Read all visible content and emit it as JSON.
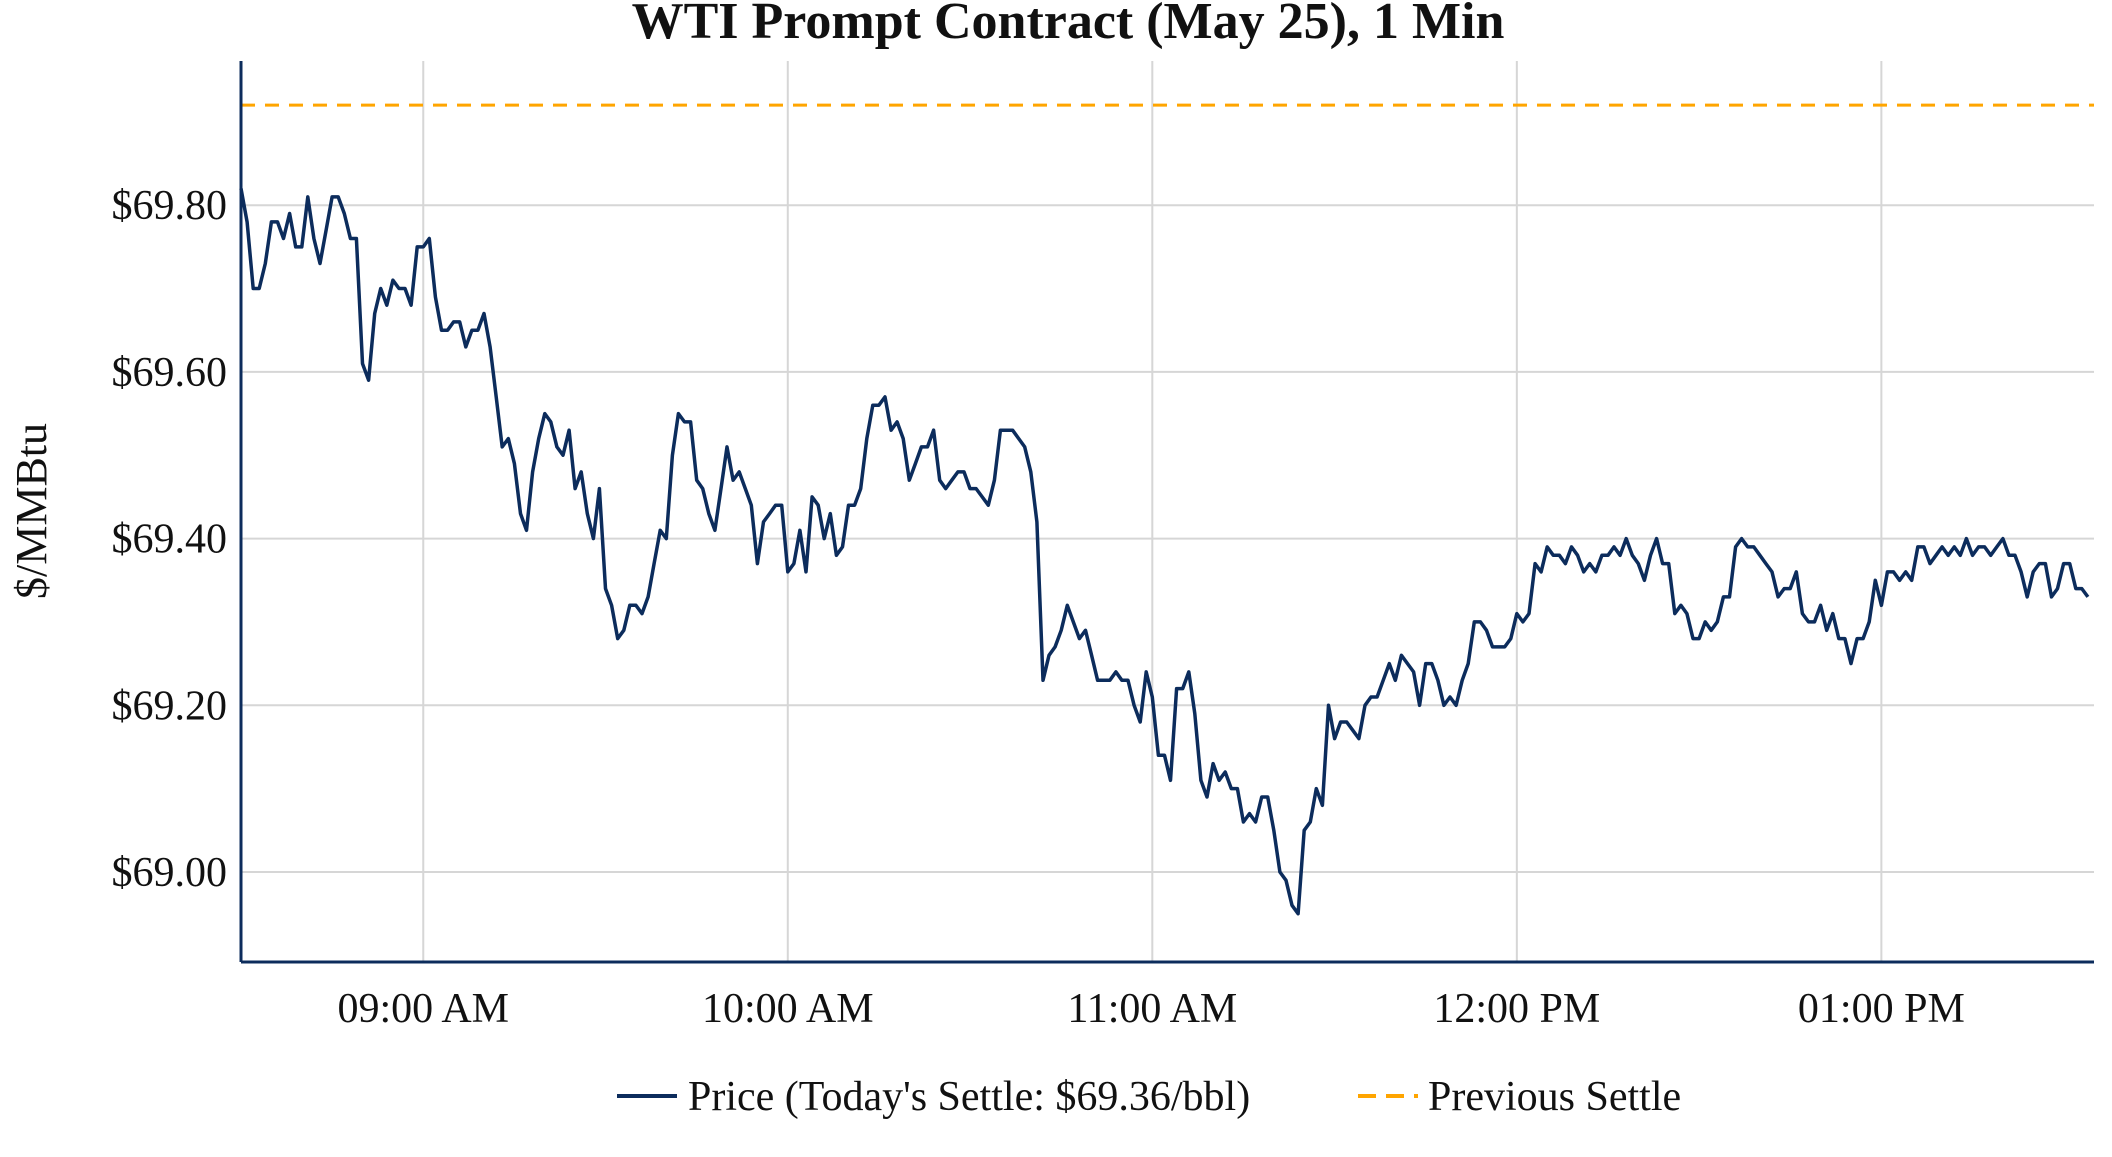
{
  "chart_data": {
    "type": "line",
    "title": "WTI Prompt Contract (May 25), 1 Min",
    "xlabel": "",
    "ylabel": "$/MMBtu",
    "x_start": "08:30",
    "x_interval_minutes": 1,
    "xlim_minutes": [
      510,
      815
    ],
    "ylim": [
      68.892,
      69.973
    ],
    "grid": true,
    "x_ticks": [
      {
        "minute": 540,
        "label": "09:00 AM"
      },
      {
        "minute": 600,
        "label": "10:00 AM"
      },
      {
        "minute": 660,
        "label": "11:00 AM"
      },
      {
        "minute": 720,
        "label": "12:00 PM"
      },
      {
        "minute": 780,
        "label": "01:00 PM"
      }
    ],
    "y_ticks": [
      {
        "value": 69.0,
        "label": "$69.00"
      },
      {
        "value": 69.2,
        "label": "$69.20"
      },
      {
        "value": 69.4,
        "label": "$69.40"
      },
      {
        "value": 69.6,
        "label": "$69.60"
      },
      {
        "value": 69.8,
        "label": "$69.80"
      }
    ],
    "legend_position": "bottom-center",
    "series": [
      {
        "name": "Price (Today's Settle: $69.36/bbl)",
        "color": "#0c2c5c",
        "style": "solid",
        "values": [
          69.82,
          69.78,
          69.7,
          69.7,
          69.73,
          69.78,
          69.78,
          69.76,
          69.79,
          69.75,
          69.75,
          69.81,
          69.76,
          69.73,
          69.77,
          69.81,
          69.81,
          69.79,
          69.76,
          69.76,
          69.61,
          69.59,
          69.67,
          69.7,
          69.68,
          69.71,
          69.7,
          69.7,
          69.68,
          69.75,
          69.75,
          69.76,
          69.69,
          69.65,
          69.65,
          69.66,
          69.66,
          69.63,
          69.65,
          69.65,
          69.67,
          69.63,
          69.57,
          69.51,
          69.52,
          69.49,
          69.43,
          69.41,
          69.48,
          69.52,
          69.55,
          69.54,
          69.51,
          69.5,
          69.53,
          69.46,
          69.48,
          69.43,
          69.4,
          69.46,
          69.34,
          69.32,
          69.28,
          69.29,
          69.32,
          69.32,
          69.31,
          69.33,
          69.37,
          69.41,
          69.4,
          69.5,
          69.55,
          69.54,
          69.54,
          69.47,
          69.46,
          69.43,
          69.41,
          69.46,
          69.51,
          69.47,
          69.48,
          69.46,
          69.44,
          69.37,
          69.42,
          69.43,
          69.44,
          69.44,
          69.36,
          69.37,
          69.41,
          69.36,
          69.45,
          69.44,
          69.4,
          69.43,
          69.38,
          69.39,
          69.44,
          69.44,
          69.46,
          69.52,
          69.56,
          69.56,
          69.57,
          69.53,
          69.54,
          69.52,
          69.47,
          69.49,
          69.51,
          69.51,
          69.53,
          69.47,
          69.46,
          69.47,
          69.48,
          69.48,
          69.46,
          69.46,
          69.45,
          69.44,
          69.47,
          69.53,
          69.53,
          69.53,
          69.52,
          69.51,
          69.48,
          69.42,
          69.23,
          69.26,
          69.27,
          69.29,
          69.32,
          69.3,
          69.28,
          69.29,
          69.26,
          69.23,
          69.23,
          69.23,
          69.24,
          69.23,
          69.23,
          69.2,
          69.18,
          69.24,
          69.21,
          69.14,
          69.14,
          69.11,
          69.22,
          69.22,
          69.24,
          69.19,
          69.11,
          69.09,
          69.13,
          69.11,
          69.12,
          69.1,
          69.1,
          69.06,
          69.07,
          69.06,
          69.09,
          69.09,
          69.05,
          69.0,
          68.99,
          68.96,
          68.95,
          69.05,
          69.06,
          69.1,
          69.08,
          69.2,
          69.16,
          69.18,
          69.18,
          69.17,
          69.16,
          69.2,
          69.21,
          69.21,
          69.23,
          69.25,
          69.23,
          69.26,
          69.25,
          69.24,
          69.2,
          69.25,
          69.25,
          69.23,
          69.2,
          69.21,
          69.2,
          69.23,
          69.25,
          69.3,
          69.3,
          69.29,
          69.27,
          69.27,
          69.27,
          69.28,
          69.31,
          69.3,
          69.31,
          69.37,
          69.36,
          69.39,
          69.38,
          69.38,
          69.37,
          69.39,
          69.38,
          69.36,
          69.37,
          69.36,
          69.38,
          69.38,
          69.39,
          69.38,
          69.4,
          69.38,
          69.37,
          69.35,
          69.38,
          69.4,
          69.37,
          69.37,
          69.31,
          69.32,
          69.31,
          69.28,
          69.28,
          69.3,
          69.29,
          69.3,
          69.33,
          69.33,
          69.39,
          69.4,
          69.39,
          69.39,
          69.38,
          69.37,
          69.36,
          69.33,
          69.34,
          69.34,
          69.36,
          69.31,
          69.3,
          69.3,
          69.32,
          69.29,
          69.31,
          69.28,
          69.28,
          69.25,
          69.28,
          69.28,
          69.3,
          69.35,
          69.32,
          69.36,
          69.36,
          69.35,
          69.36,
          69.35,
          69.39,
          69.39,
          69.37,
          69.38,
          69.39,
          69.38,
          69.39,
          69.38,
          69.4,
          69.38,
          69.39,
          69.39,
          69.38,
          69.39,
          69.4,
          69.38,
          69.38,
          69.36,
          69.33,
          69.36,
          69.37,
          69.37,
          69.33,
          69.34,
          69.37,
          69.37,
          69.34,
          69.34,
          69.33
        ]
      },
      {
        "name": "Previous Settle",
        "color": "#ffa500",
        "style": "dashed",
        "value": 69.92
      }
    ]
  }
}
